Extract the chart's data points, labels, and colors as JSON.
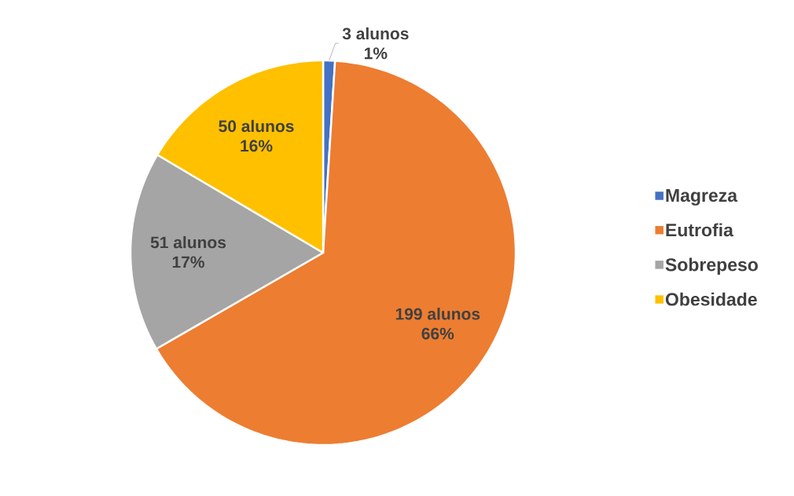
{
  "chart_data": {
    "type": "pie",
    "categories": [
      "Magreza",
      "Eutrofia",
      "Sobrepeso",
      "Obesidade"
    ],
    "values": [
      3,
      199,
      51,
      50
    ],
    "colors": [
      "#4472c4",
      "#ed7d31",
      "#a5a5a5",
      "#ffc000"
    ],
    "value_labels": [
      "3 alunos\n1%",
      "199 alunos\n66%",
      "51 alunos\n17%",
      "50 alunos\n16%"
    ],
    "legend": "right"
  }
}
